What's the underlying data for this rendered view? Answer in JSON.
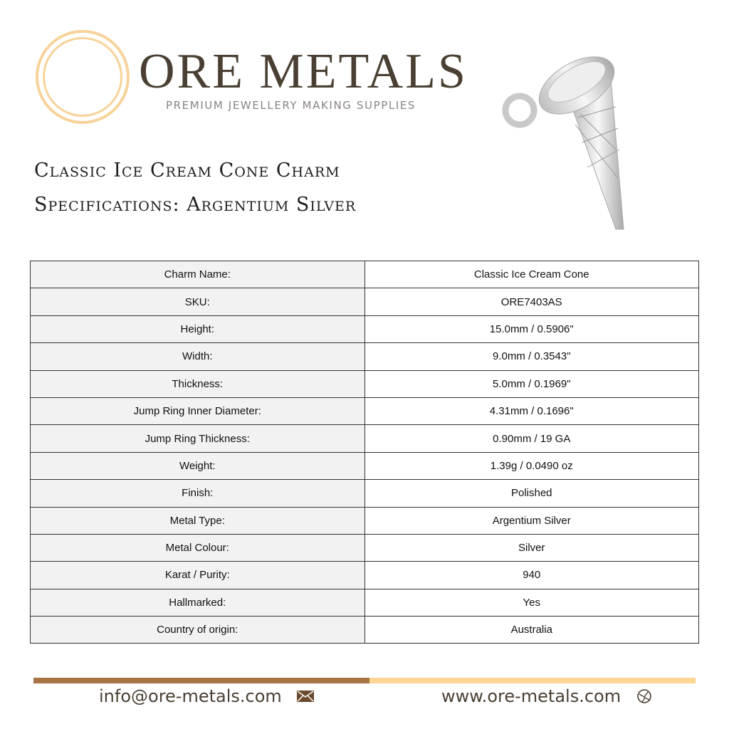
{
  "brand": {
    "name": "ORE METALS",
    "tagline": "PREMIUM JEWELLERY MAKING SUPPLIES"
  },
  "title": {
    "line1": "Classic Ice Cream Cone Charm",
    "line2": "Specifications: Argentium Silver"
  },
  "specs": [
    {
      "label": "Charm Name:",
      "value": "Classic Ice Cream Cone"
    },
    {
      "label": "SKU:",
      "value": "ORE7403AS"
    },
    {
      "label": "Height:",
      "value": "15.0mm / 0.5906\""
    },
    {
      "label": "Width:",
      "value": "9.0mm / 0.3543\""
    },
    {
      "label": "Thickness:",
      "value": "5.0mm / 0.1969\""
    },
    {
      "label": "Jump Ring Inner Diameter:",
      "value": "4.31mm / 0.1696\""
    },
    {
      "label": "Jump Ring Thickness:",
      "value": "0.90mm / 19 GA"
    },
    {
      "label": "Weight:",
      "value": "1.39g / 0.0490 oz"
    },
    {
      "label": "Finish:",
      "value": "Polished"
    },
    {
      "label": "Metal Type:",
      "value": "Argentium Silver"
    },
    {
      "label": "Metal Colour:",
      "value": "Silver"
    },
    {
      "label": "Karat / Purity:",
      "value": "940"
    },
    {
      "label": "Hallmarked:",
      "value": "Yes"
    },
    {
      "label": "Country of origin:",
      "value": "Australia"
    }
  ],
  "footer": {
    "email": "info@ore-metals.com",
    "website": "www.ore-metals.com",
    "email_icon": "envelope-icon",
    "web_icon": "globe-icon"
  },
  "colors": {
    "brand_gold": "#f7d39a",
    "brand_brown": "#a87444",
    "text_brown": "#4a3f33"
  }
}
